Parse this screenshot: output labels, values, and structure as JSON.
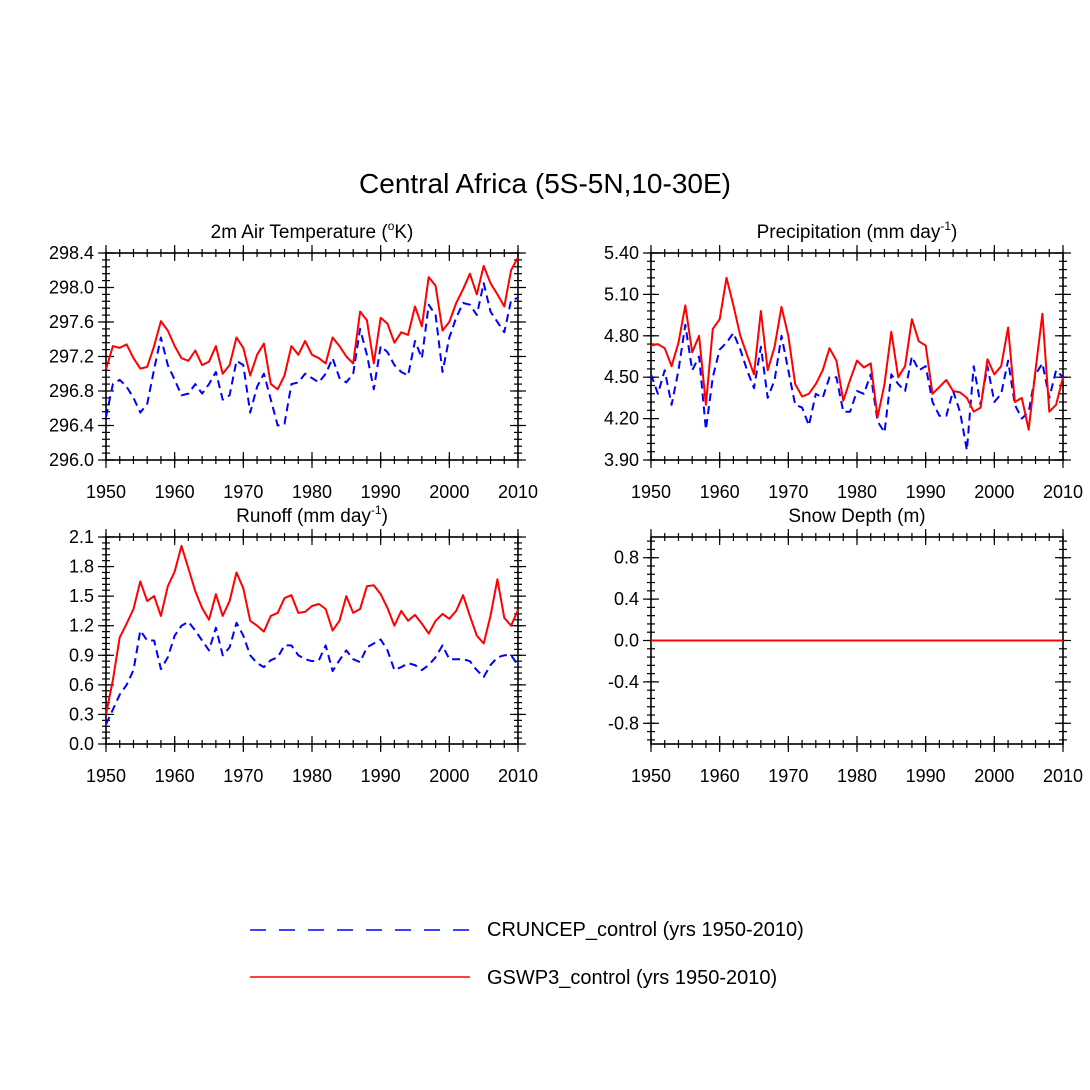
{
  "figure": {
    "title": "Central Africa (5S-5N,10-30E)",
    "colors": {
      "CRUNCEP_control": "#0000ff",
      "GSWP3_control": "#ff0000"
    },
    "legend": [
      {
        "label": "CRUNCEP_control (yrs 1950-2010)",
        "style": "dashed",
        "color": "#0000ff"
      },
      {
        "label": "GSWP3_control (yrs 1950-2010)",
        "style": "solid",
        "color": "#ff0000"
      }
    ]
  },
  "chart_data": [
    {
      "type": "line",
      "title": "2m Air Temperature (oK)",
      "title_main": "2m Air Temperature (",
      "title_sup": "o",
      "title_end": "K)",
      "xlim": [
        1950,
        2010
      ],
      "ylim": [
        296.0,
        298.4
      ],
      "xticks": [
        1950,
        1960,
        1970,
        1980,
        1990,
        2000,
        2010
      ],
      "xtick_labels": [
        "1950",
        "1960",
        "1970",
        "1980",
        "1990",
        "2000",
        "2010"
      ],
      "yticks": [
        296.0,
        296.4,
        296.8,
        297.2,
        297.6,
        298.0,
        298.4
      ],
      "ytick_labels": [
        "296.0",
        "296.4",
        "296.8",
        "297.2",
        "297.6",
        "298.0",
        "298.4"
      ],
      "yminor_step": 0.08,
      "x_start": 1950,
      "series": [
        {
          "name": "CRUNCEP_control",
          "style": "dashed",
          "values": [
            296.5,
            296.88,
            296.93,
            296.85,
            296.72,
            296.55,
            296.65,
            297.05,
            297.42,
            297.1,
            296.93,
            296.75,
            296.77,
            296.88,
            296.77,
            296.88,
            297.02,
            296.7,
            296.75,
            297.15,
            297.1,
            296.55,
            296.85,
            297.0,
            296.7,
            296.4,
            296.42,
            296.88,
            296.9,
            297.0,
            296.95,
            296.9,
            297.0,
            297.18,
            296.95,
            296.9,
            297.0,
            297.52,
            297.22,
            296.82,
            297.32,
            297.25,
            297.1,
            297.02,
            296.98,
            297.38,
            297.18,
            297.8,
            297.68,
            297.02,
            297.42,
            297.65,
            297.82,
            297.8,
            297.68,
            298.05,
            297.72,
            297.6,
            297.48,
            297.85,
            297.88
          ]
        },
        {
          "name": "GSWP3_control",
          "style": "solid",
          "values": [
            297.05,
            297.32,
            297.3,
            297.34,
            297.18,
            297.06,
            297.08,
            297.32,
            297.61,
            297.5,
            297.32,
            297.18,
            297.15,
            297.27,
            297.1,
            297.14,
            297.32,
            297.0,
            297.1,
            297.42,
            297.3,
            296.98,
            297.22,
            297.35,
            296.88,
            296.82,
            296.98,
            297.32,
            297.22,
            297.38,
            297.22,
            297.18,
            297.12,
            297.42,
            297.32,
            297.2,
            297.12,
            297.72,
            297.62,
            297.12,
            297.65,
            297.58,
            297.36,
            297.48,
            297.45,
            297.78,
            297.55,
            298.12,
            298.02,
            297.5,
            297.6,
            297.82,
            297.98,
            298.16,
            297.92,
            298.25,
            298.05,
            297.92,
            297.78,
            298.2,
            298.35
          ]
        }
      ]
    },
    {
      "type": "line",
      "title": "Precipitation (mm day-1)",
      "title_main": "Precipitation (mm day",
      "title_sup": "-1",
      "title_end": ")",
      "xlim": [
        1950,
        2010
      ],
      "ylim": [
        3.9,
        5.4
      ],
      "xticks": [
        1950,
        1960,
        1970,
        1980,
        1990,
        2000,
        2010
      ],
      "xtick_labels": [
        "1950",
        "1960",
        "1970",
        "1980",
        "1990",
        "2000",
        "2010"
      ],
      "yticks": [
        3.9,
        4.2,
        4.5,
        4.8,
        5.1,
        5.4
      ],
      "ytick_labels": [
        "3.90",
        "4.20",
        "4.50",
        "4.80",
        "5.10",
        "5.40"
      ],
      "yminor_step": 0.06,
      "x_start": 1950,
      "series": [
        {
          "name": "CRUNCEP_control",
          "style": "dashed",
          "values": [
            4.52,
            4.38,
            4.55,
            4.3,
            4.55,
            4.88,
            4.55,
            4.65,
            4.12,
            4.5,
            4.7,
            4.75,
            4.82,
            4.7,
            4.55,
            4.42,
            4.72,
            4.35,
            4.48,
            4.8,
            4.55,
            4.3,
            4.28,
            4.15,
            4.38,
            4.35,
            4.5,
            4.5,
            4.25,
            4.25,
            4.4,
            4.38,
            4.52,
            4.18,
            4.1,
            4.52,
            4.45,
            4.4,
            4.65,
            4.55,
            4.58,
            4.32,
            4.22,
            4.22,
            4.4,
            4.25,
            3.97,
            4.58,
            4.3,
            4.58,
            4.32,
            4.38,
            4.62,
            4.3,
            4.2,
            4.25,
            4.52,
            4.6,
            4.35,
            4.55,
            4.5
          ]
        },
        {
          "name": "GSWP3_control",
          "style": "solid",
          "values": [
            4.73,
            4.74,
            4.71,
            4.58,
            4.75,
            5.02,
            4.68,
            4.8,
            4.3,
            4.85,
            4.92,
            5.22,
            5.02,
            4.8,
            4.66,
            4.52,
            4.98,
            4.55,
            4.72,
            5.01,
            4.8,
            4.45,
            4.36,
            4.38,
            4.45,
            4.55,
            4.71,
            4.62,
            4.33,
            4.48,
            4.62,
            4.57,
            4.6,
            4.21,
            4.45,
            4.83,
            4.5,
            4.58,
            4.92,
            4.76,
            4.73,
            4.38,
            4.43,
            4.48,
            4.4,
            4.39,
            4.35,
            4.25,
            4.28,
            4.63,
            4.52,
            4.58,
            4.86,
            4.32,
            4.35,
            4.12,
            4.55,
            4.96,
            4.25,
            4.3,
            4.5
          ]
        }
      ]
    },
    {
      "type": "line",
      "title": "Runoff (mm day-1)",
      "title_main": "Runoff (mm day",
      "title_sup": "-1",
      "title_end": ")",
      "xlim": [
        1950,
        2010
      ],
      "ylim": [
        0.0,
        2.1
      ],
      "xticks": [
        1950,
        1960,
        1970,
        1980,
        1990,
        2000,
        2010
      ],
      "xtick_labels": [
        "1950",
        "1960",
        "1970",
        "1980",
        "1990",
        "2000",
        "2010"
      ],
      "yticks": [
        0.0,
        0.3,
        0.6,
        0.9,
        1.2,
        1.5,
        1.8,
        2.1
      ],
      "ytick_labels": [
        "0.0",
        "0.3",
        "0.6",
        "0.9",
        "1.2",
        "1.5",
        "1.8",
        "2.1"
      ],
      "yminor_step": 0.06,
      "x_start": 1950,
      "series": [
        {
          "name": "CRUNCEP_control",
          "style": "dashed",
          "values": [
            0.2,
            0.35,
            0.5,
            0.6,
            0.75,
            1.15,
            1.05,
            1.05,
            0.76,
            0.88,
            1.1,
            1.2,
            1.24,
            1.15,
            1.05,
            0.95,
            1.18,
            0.9,
            0.98,
            1.23,
            1.1,
            0.9,
            0.82,
            0.78,
            0.85,
            0.88,
            1.0,
            1.0,
            0.9,
            0.86,
            0.84,
            0.85,
            1.0,
            0.74,
            0.85,
            0.95,
            0.86,
            0.83,
            0.98,
            1.02,
            1.06,
            0.95,
            0.75,
            0.78,
            0.82,
            0.8,
            0.75,
            0.8,
            0.88,
            1.0,
            0.86,
            0.86,
            0.86,
            0.84,
            0.75,
            0.68,
            0.8,
            0.88,
            0.9,
            0.9,
            0.8
          ]
        },
        {
          "name": "GSWP3_control",
          "style": "solid",
          "values": [
            0.3,
            0.65,
            1.08,
            1.22,
            1.37,
            1.65,
            1.45,
            1.5,
            1.3,
            1.6,
            1.75,
            2.01,
            1.78,
            1.55,
            1.38,
            1.26,
            1.52,
            1.3,
            1.45,
            1.74,
            1.58,
            1.25,
            1.2,
            1.14,
            1.3,
            1.33,
            1.48,
            1.51,
            1.33,
            1.34,
            1.4,
            1.42,
            1.37,
            1.15,
            1.25,
            1.5,
            1.33,
            1.37,
            1.6,
            1.61,
            1.52,
            1.38,
            1.2,
            1.35,
            1.25,
            1.31,
            1.22,
            1.12,
            1.25,
            1.32,
            1.27,
            1.35,
            1.51,
            1.3,
            1.1,
            1.02,
            1.3,
            1.67,
            1.28,
            1.2,
            1.36
          ]
        }
      ]
    },
    {
      "type": "line",
      "title": "Snow Depth (m)",
      "title_main": "Snow Depth (m)",
      "title_sup": "",
      "title_end": "",
      "xlim": [
        1950,
        2010
      ],
      "ylim": [
        -1.0,
        1.0
      ],
      "xticks": [
        1950,
        1960,
        1970,
        1980,
        1990,
        2000,
        2010
      ],
      "xtick_labels": [
        "1950",
        "1960",
        "1970",
        "1980",
        "1990",
        "2000",
        "2010"
      ],
      "yticks": [
        -0.8,
        -0.4,
        0.0,
        0.4,
        0.8
      ],
      "ytick_labels": [
        "-0.8",
        "-0.4",
        "0.0",
        "0.4",
        "0.8"
      ],
      "yminor_step": 0.08,
      "x_start": 1950,
      "series": [
        {
          "name": "CRUNCEP_control",
          "style": "dashed",
          "values": [
            0,
            0,
            0,
            0,
            0,
            0,
            0,
            0,
            0,
            0,
            0,
            0,
            0,
            0,
            0,
            0,
            0,
            0,
            0,
            0,
            0,
            0,
            0,
            0,
            0,
            0,
            0,
            0,
            0,
            0,
            0,
            0,
            0,
            0,
            0,
            0,
            0,
            0,
            0,
            0,
            0,
            0,
            0,
            0,
            0,
            0,
            0,
            0,
            0,
            0,
            0,
            0,
            0,
            0,
            0,
            0,
            0,
            0,
            0,
            0,
            0
          ]
        },
        {
          "name": "GSWP3_control",
          "style": "solid",
          "values": [
            0,
            0,
            0,
            0,
            0,
            0,
            0,
            0,
            0,
            0,
            0,
            0,
            0,
            0,
            0,
            0,
            0,
            0,
            0,
            0,
            0,
            0,
            0,
            0,
            0,
            0,
            0,
            0,
            0,
            0,
            0,
            0,
            0,
            0,
            0,
            0,
            0,
            0,
            0,
            0,
            0,
            0,
            0,
            0,
            0,
            0,
            0,
            0,
            0,
            0,
            0,
            0,
            0,
            0,
            0,
            0,
            0,
            0,
            0,
            0,
            0
          ]
        }
      ]
    }
  ]
}
